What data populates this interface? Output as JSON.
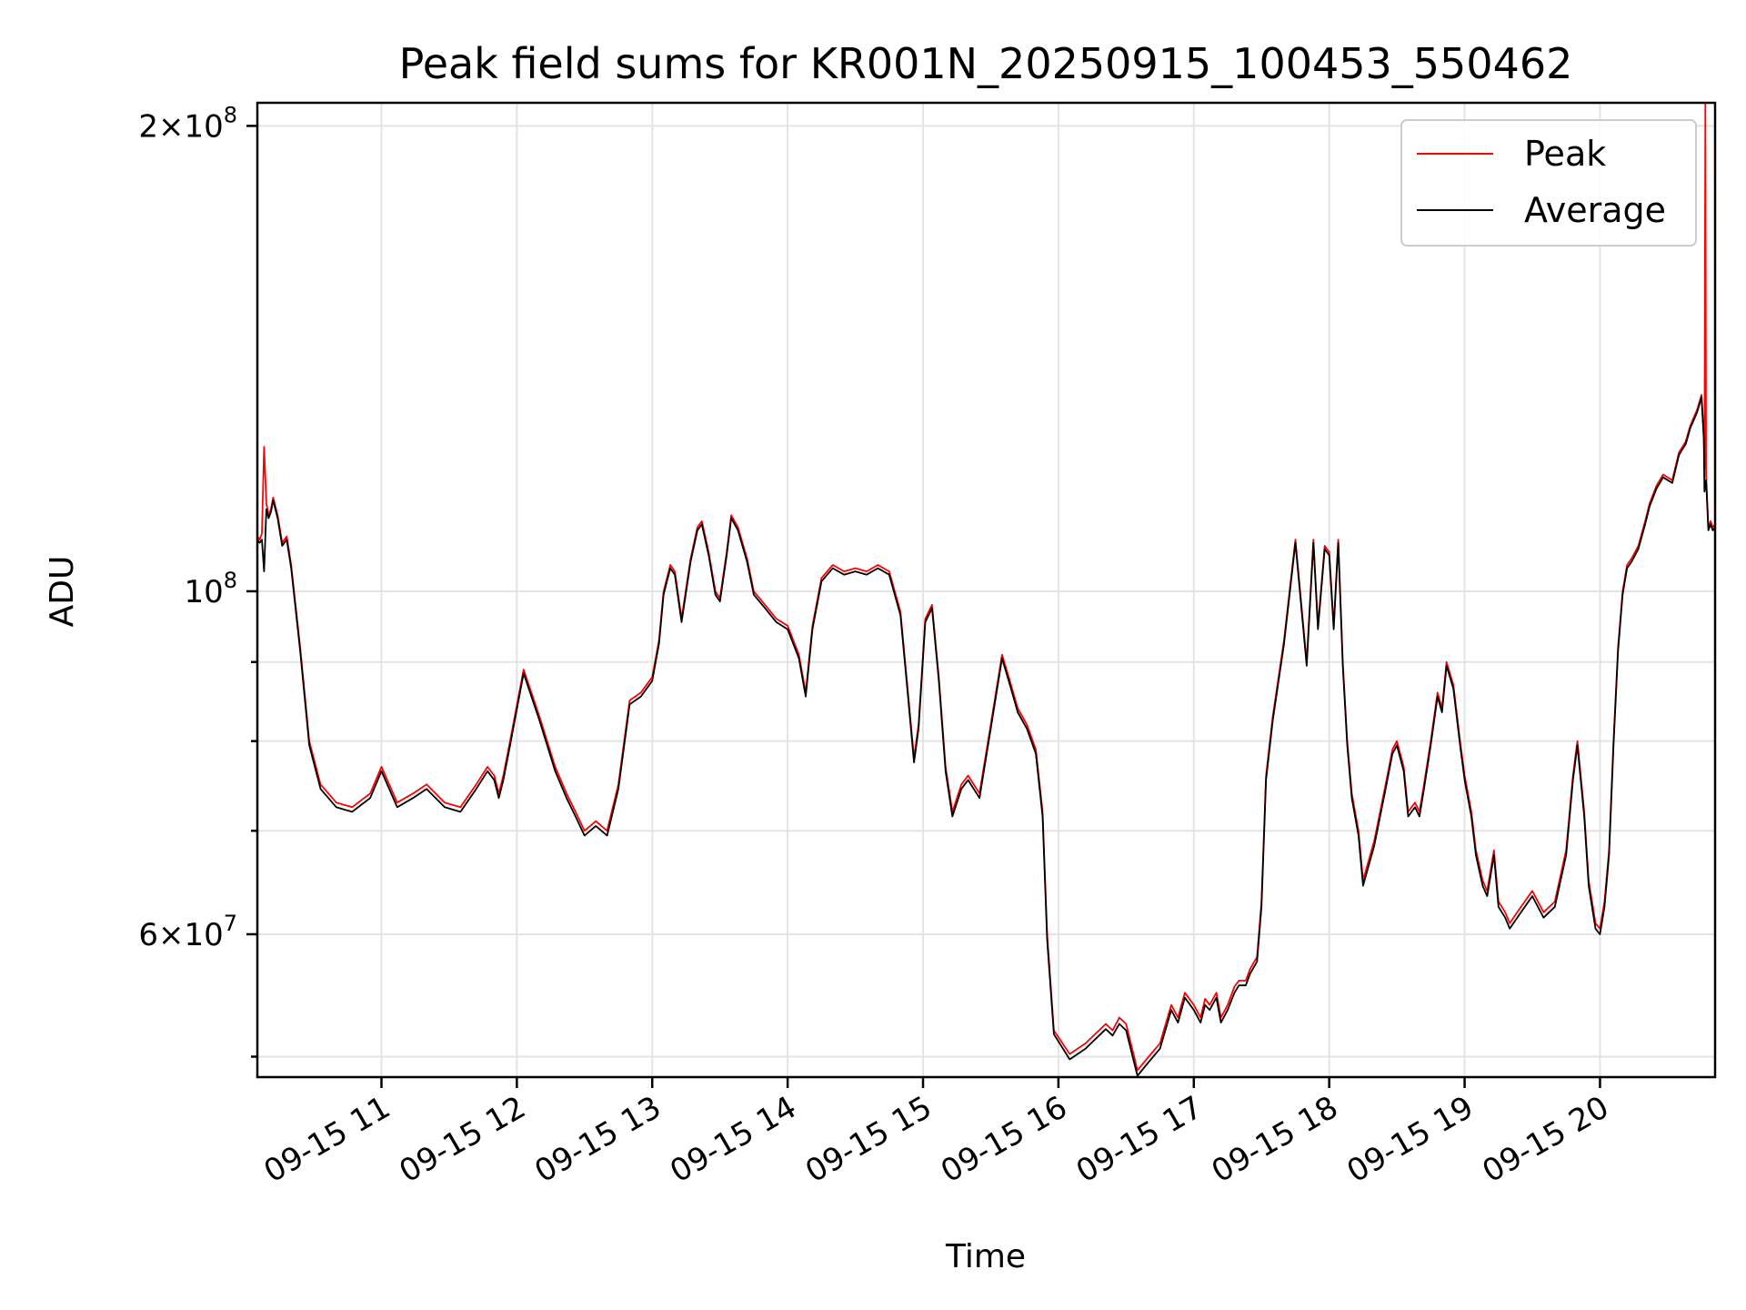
{
  "chart_data": {
    "type": "line",
    "title": "Peak field sums for KR001N_20250915_100453_550462",
    "xlabel": "Time",
    "ylabel": "ADU",
    "yscale": "log",
    "ylim": [
      48500000,
      207000000
    ],
    "xlim": [
      "2025-09-15 10:05",
      "2025-09-15 20:51"
    ],
    "grid": true,
    "legend": {
      "position": "top-right",
      "entries": [
        "Peak",
        "Average"
      ]
    },
    "x_ticks": [
      "09-15 11",
      "09-15 12",
      "09-15 13",
      "09-15 14",
      "09-15 15",
      "09-15 16",
      "09-15 17",
      "09-15 18",
      "09-15 19",
      "09-15 20"
    ],
    "y_tick_labels": [
      {
        "value": 200000000,
        "mantissa": "2",
        "exponent": "8"
      },
      {
        "value": 100000000,
        "mantissa": "",
        "exponent": "8"
      },
      {
        "value": 60000000,
        "mantissa": "6",
        "exponent": "7"
      }
    ],
    "y_minor_ticks": [
      50000000,
      70000000,
      80000000,
      90000000
    ],
    "series": [
      {
        "name": "Peak",
        "color": "#ff0000",
        "x": [
          "10:05",
          "10:06",
          "10:07",
          "10:08",
          "10:09",
          "10:10",
          "10:11",
          "10:12",
          "10:14",
          "10:16",
          "10:18",
          "10:20",
          "10:24",
          "10:28",
          "10:33",
          "10:40",
          "10:47",
          "10:55",
          "11:00",
          "11:07",
          "11:14",
          "11:20",
          "11:28",
          "11:35",
          "11:42",
          "11:47",
          "11:50",
          "11:52",
          "11:54",
          "11:57",
          "12:03",
          "12:10",
          "12:17",
          "12:22",
          "12:26",
          "12:30",
          "12:35",
          "12:40",
          "12:45",
          "12:50",
          "12:55",
          "13:00",
          "13:03",
          "13:05",
          "13:08",
          "13:10",
          "13:13",
          "13:17",
          "13:20",
          "13:22",
          "13:25",
          "13:28",
          "13:30",
          "13:33",
          "13:35",
          "13:38",
          "13:42",
          "13:45",
          "13:50",
          "13:55",
          "14:00",
          "14:05",
          "14:08",
          "14:11",
          "14:15",
          "14:20",
          "14:25",
          "14:30",
          "14:35",
          "14:40",
          "14:45",
          "14:50",
          "14:53",
          "14:56",
          "14:58",
          "15:01",
          "15:04",
          "15:07",
          "15:10",
          "15:13",
          "15:17",
          "15:20",
          "15:25",
          "15:30",
          "15:35",
          "15:38",
          "15:42",
          "15:46",
          "15:50",
          "15:53",
          "15:55",
          "15:58",
          "16:05",
          "16:12",
          "16:18",
          "16:21",
          "16:24",
          "16:27",
          "16:30",
          "16:35",
          "16:40",
          "16:45",
          "16:50",
          "16:53",
          "16:56",
          "17:00",
          "17:03",
          "17:05",
          "17:07",
          "17:10",
          "17:12",
          "17:15",
          "17:18",
          "17:20",
          "17:23",
          "17:25",
          "17:28",
          "17:30",
          "17:32",
          "17:35",
          "17:40",
          "17:45",
          "17:50",
          "17:53",
          "17:55",
          "17:58",
          "18:00",
          "18:02",
          "18:04",
          "18:06",
          "18:08",
          "18:10",
          "18:13",
          "18:15",
          "18:20",
          "18:25",
          "18:28",
          "18:30",
          "18:33",
          "18:35",
          "18:38",
          "18:40",
          "18:42",
          "18:45",
          "18:48",
          "18:50",
          "18:52",
          "18:55",
          "18:58",
          "19:00",
          "19:03",
          "19:05",
          "19:08",
          "19:10",
          "19:13",
          "19:15",
          "19:18",
          "19:20",
          "19:25",
          "19:30",
          "19:35",
          "19:40",
          "19:45",
          "19:48",
          "19:50",
          "19:53",
          "19:55",
          "19:58",
          "20:00",
          "20:02",
          "20:04",
          "20:06",
          "20:08",
          "20:10",
          "20:12",
          "20:14",
          "20:17",
          "20:20",
          "20:22",
          "20:25",
          "20:28",
          "20:32",
          "20:35",
          "20:38",
          "20:40",
          "20:43",
          "20:45",
          "20:46",
          "20:46.3",
          "20:46.7",
          "20:47",
          "20:48",
          "20:49",
          "20:50",
          "20:51"
        ],
        "y": [
          108500000,
          108000000,
          109000000,
          124000000,
          114000000,
          112000000,
          113000000,
          115000000,
          112000000,
          107500000,
          108500000,
          104000000,
          92000000,
          80000000,
          75000000,
          73000000,
          72500000,
          74000000,
          77000000,
          73000000,
          74000000,
          75000000,
          73000000,
          72500000,
          75000000,
          77000000,
          76000000,
          74000000,
          76000000,
          80000000,
          89000000,
          83000000,
          77000000,
          74000000,
          72000000,
          70000000,
          71000000,
          70000000,
          75000000,
          85000000,
          86000000,
          88000000,
          93000000,
          100000000,
          104000000,
          103000000,
          96000000,
          105000000,
          110000000,
          111000000,
          106000000,
          100000000,
          99000000,
          106000000,
          112000000,
          110000000,
          105000000,
          100000000,
          98000000,
          96000000,
          95000000,
          91000000,
          86000000,
          95000000,
          102000000,
          104000000,
          103000000,
          103500000,
          103000000,
          104000000,
          103000000,
          97000000,
          87000000,
          78000000,
          82000000,
          96000000,
          98000000,
          88000000,
          77000000,
          72000000,
          75000000,
          76000000,
          74000000,
          82000000,
          91000000,
          88000000,
          84000000,
          82000000,
          79000000,
          72000000,
          60000000,
          52000000,
          50200000,
          51000000,
          52000000,
          52500000,
          52000000,
          53000000,
          52500000,
          49000000,
          50000000,
          51000000,
          54000000,
          53000000,
          55000000,
          54000000,
          53000000,
          54500000,
          54000000,
          55000000,
          53000000,
          54000000,
          55500000,
          56000000,
          56000000,
          57000000,
          58000000,
          63000000,
          76000000,
          83000000,
          93000000,
          108000000,
          90000000,
          108000000,
          95000000,
          107000000,
          106000000,
          95000000,
          108000000,
          90000000,
          80000000,
          74000000,
          70000000,
          65000000,
          69000000,
          75000000,
          79000000,
          80000000,
          77000000,
          72000000,
          73000000,
          72000000,
          75000000,
          80000000,
          86000000,
          84000000,
          90000000,
          87000000,
          80000000,
          76000000,
          72000000,
          68000000,
          65000000,
          64000000,
          68000000,
          63000000,
          62000000,
          61000000,
          62500000,
          64000000,
          62000000,
          63000000,
          68000000,
          76000000,
          80000000,
          72000000,
          65000000,
          61000000,
          60500000,
          63000000,
          68000000,
          80000000,
          92000000,
          100000000,
          104000000,
          105000000,
          107000000,
          111000000,
          114000000,
          117000000,
          119000000,
          118000000,
          123000000,
          125000000,
          128000000,
          131000000,
          134000000,
          126000000,
          120000000,
          207000000,
          119000000,
          110000000,
          111000000,
          110000000,
          110500000
        ]
      },
      {
        "name": "Average",
        "color": "#000000",
        "x": [
          "10:05",
          "10:06",
          "10:07",
          "10:08",
          "10:09",
          "10:10",
          "10:11",
          "10:12",
          "10:14",
          "10:16",
          "10:18",
          "10:20",
          "10:24",
          "10:28",
          "10:33",
          "10:40",
          "10:47",
          "10:55",
          "11:00",
          "11:07",
          "11:14",
          "11:20",
          "11:28",
          "11:35",
          "11:42",
          "11:47",
          "11:50",
          "11:52",
          "11:54",
          "11:57",
          "12:03",
          "12:10",
          "12:17",
          "12:22",
          "12:26",
          "12:30",
          "12:35",
          "12:40",
          "12:45",
          "12:50",
          "12:55",
          "13:00",
          "13:03",
          "13:05",
          "13:08",
          "13:10",
          "13:13",
          "13:17",
          "13:20",
          "13:22",
          "13:25",
          "13:28",
          "13:30",
          "13:33",
          "13:35",
          "13:38",
          "13:42",
          "13:45",
          "13:50",
          "13:55",
          "14:00",
          "14:05",
          "14:08",
          "14:11",
          "14:15",
          "14:20",
          "14:25",
          "14:30",
          "14:35",
          "14:40",
          "14:45",
          "14:50",
          "14:53",
          "14:56",
          "14:58",
          "15:01",
          "15:04",
          "15:07",
          "15:10",
          "15:13",
          "15:17",
          "15:20",
          "15:25",
          "15:30",
          "15:35",
          "15:38",
          "15:42",
          "15:46",
          "15:50",
          "15:53",
          "15:55",
          "15:58",
          "16:05",
          "16:12",
          "16:18",
          "16:21",
          "16:24",
          "16:27",
          "16:30",
          "16:35",
          "16:40",
          "16:45",
          "16:50",
          "16:53",
          "16:56",
          "17:00",
          "17:03",
          "17:05",
          "17:07",
          "17:10",
          "17:12",
          "17:15",
          "17:18",
          "17:20",
          "17:23",
          "17:25",
          "17:28",
          "17:30",
          "17:32",
          "17:35",
          "17:40",
          "17:45",
          "17:50",
          "17:53",
          "17:55",
          "17:58",
          "18:00",
          "18:02",
          "18:04",
          "18:06",
          "18:08",
          "18:10",
          "18:13",
          "18:15",
          "18:20",
          "18:25",
          "18:28",
          "18:30",
          "18:33",
          "18:35",
          "18:38",
          "18:40",
          "18:42",
          "18:45",
          "18:48",
          "18:50",
          "18:52",
          "18:55",
          "18:58",
          "19:00",
          "19:03",
          "19:05",
          "19:08",
          "19:10",
          "19:13",
          "19:15",
          "19:18",
          "19:20",
          "19:25",
          "19:30",
          "19:35",
          "19:40",
          "19:45",
          "19:48",
          "19:50",
          "19:53",
          "19:55",
          "19:58",
          "20:00",
          "20:02",
          "20:04",
          "20:06",
          "20:08",
          "20:10",
          "20:12",
          "20:14",
          "20:17",
          "20:20",
          "20:22",
          "20:25",
          "20:28",
          "20:32",
          "20:35",
          "20:38",
          "20:40",
          "20:43",
          "20:45",
          "20:46",
          "20:46.3",
          "20:46.7",
          "20:47",
          "20:48",
          "20:49",
          "20:50",
          "20:51"
        ],
        "y": [
          108000000,
          107500000,
          108000000,
          103000000,
          113000000,
          111500000,
          112500000,
          114500000,
          111500000,
          107000000,
          108000000,
          103500000,
          91500000,
          79500000,
          74500000,
          72500000,
          72000000,
          73500000,
          76500000,
          72500000,
          73500000,
          74500000,
          72500000,
          72000000,
          74500000,
          76500000,
          75500000,
          73500000,
          75500000,
          79500000,
          88500000,
          82500000,
          76500000,
          73500000,
          71500000,
          69500000,
          70500000,
          69500000,
          74500000,
          84500000,
          85500000,
          87500000,
          92500000,
          99500000,
          103500000,
          102500000,
          95500000,
          104500000,
          109500000,
          110500000,
          105500000,
          99500000,
          98500000,
          105500000,
          111500000,
          109500000,
          104500000,
          99500000,
          97500000,
          95500000,
          94500000,
          90500000,
          85500000,
          94500000,
          101500000,
          103500000,
          102500000,
          103000000,
          102500000,
          103500000,
          102500000,
          96500000,
          86500000,
          77500000,
          81500000,
          95500000,
          97500000,
          87500000,
          76500000,
          71500000,
          74500000,
          75500000,
          73500000,
          81500000,
          90500000,
          87500000,
          83500000,
          81500000,
          78500000,
          71500000,
          59500000,
          51700000,
          49800000,
          50600000,
          51600000,
          52100000,
          51600000,
          52500000,
          52000000,
          48600000,
          49600000,
          50600000,
          53600000,
          52600000,
          54600000,
          53600000,
          52600000,
          54000000,
          53600000,
          54600000,
          52600000,
          53600000,
          55000000,
          55600000,
          55600000,
          56600000,
          57600000,
          62500000,
          75500000,
          82500000,
          92500000,
          107500000,
          89500000,
          107500000,
          94500000,
          106500000,
          105500000,
          94500000,
          107500000,
          89500000,
          79500000,
          73500000,
          69500000,
          64500000,
          68500000,
          74500000,
          78500000,
          79500000,
          76500000,
          71500000,
          72500000,
          71500000,
          74500000,
          79500000,
          85500000,
          83500000,
          89500000,
          86500000,
          79500000,
          75500000,
          71500000,
          67500000,
          64500000,
          63500000,
          67500000,
          62500000,
          61500000,
          60500000,
          62000000,
          63500000,
          61500000,
          62500000,
          67500000,
          75500000,
          79500000,
          71500000,
          64500000,
          60500000,
          60000000,
          62500000,
          67500000,
          79500000,
          91500000,
          99500000,
          103500000,
          104500000,
          106500000,
          110500000,
          113500000,
          116500000,
          118500000,
          117500000,
          122500000,
          124500000,
          127500000,
          130500000,
          133500000,
          125500000,
          116000000,
          117000000,
          118000000,
          109500000,
          110500000,
          109500000,
          110000000
        ]
      }
    ]
  }
}
